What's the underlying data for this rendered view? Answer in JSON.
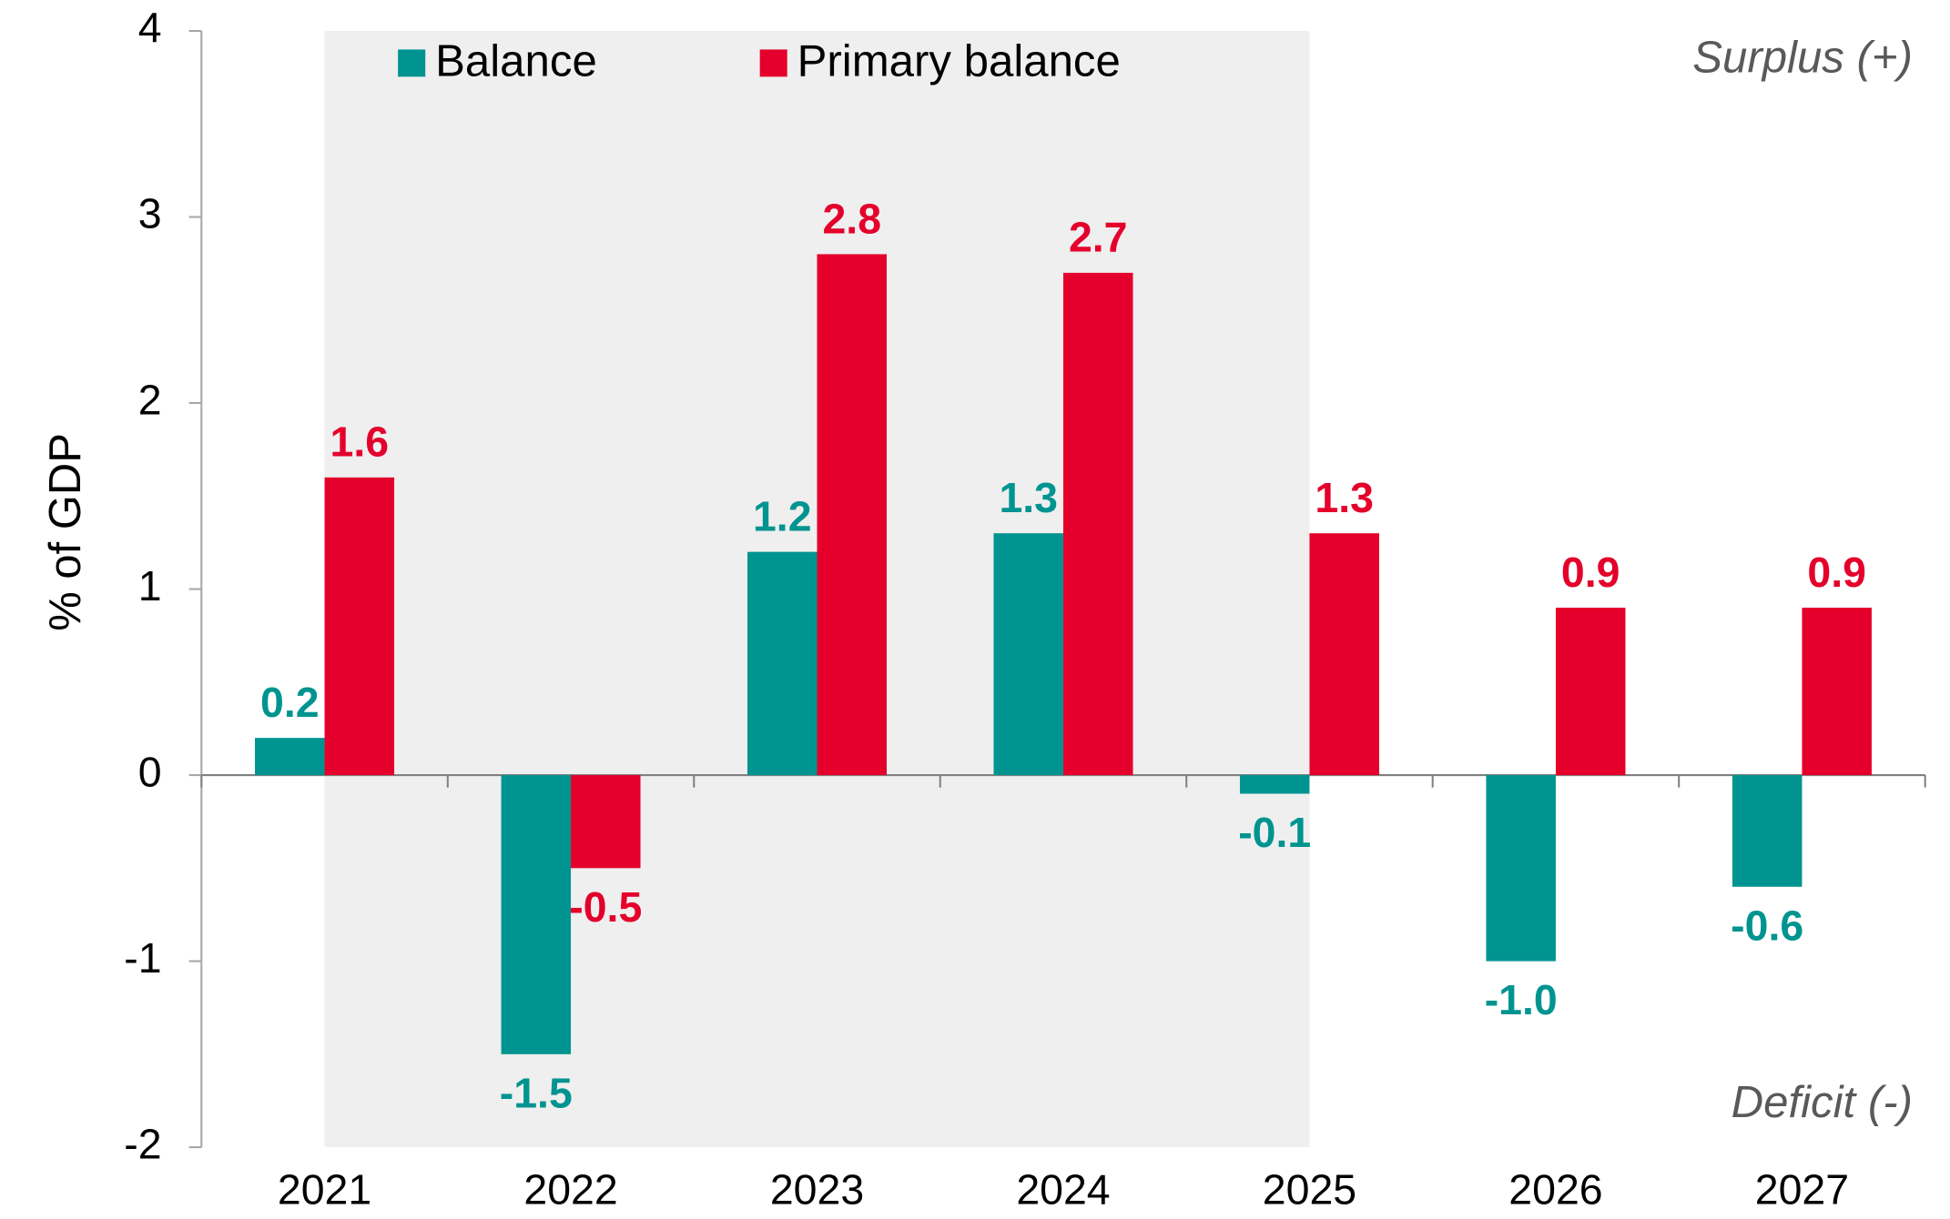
{
  "chart_data": {
    "type": "bar",
    "y_label": "% of GDP",
    "categories": [
      "2021",
      "2022",
      "2023",
      "2024",
      "2025",
      "2026",
      "2027"
    ],
    "series": [
      {
        "name": "Balance",
        "color": "#009490",
        "values": [
          0.2,
          -1.5,
          1.2,
          1.3,
          -0.1,
          -1.0,
          -0.6
        ],
        "value_labels": [
          "0.2",
          "-1.5",
          "1.2",
          "1.3",
          "-0.1",
          "-1.0",
          "-0.6"
        ]
      },
      {
        "name": "Primary balance",
        "color": "#e4002b",
        "values": [
          1.6,
          -0.5,
          2.8,
          2.7,
          1.3,
          0.9,
          0.9
        ],
        "value_labels": [
          "1.6",
          "-0.5",
          "2.8",
          "2.7",
          "1.3",
          "0.9",
          "0.9"
        ]
      }
    ],
    "ylim": [
      -2,
      4
    ],
    "yticks": [
      -2,
      -1,
      0,
      1,
      2,
      3,
      4
    ],
    "shade": [
      "2021",
      "2025"
    ],
    "annotations": [
      "Surplus (+)",
      "Deficit (-)"
    ],
    "legend": "top"
  }
}
